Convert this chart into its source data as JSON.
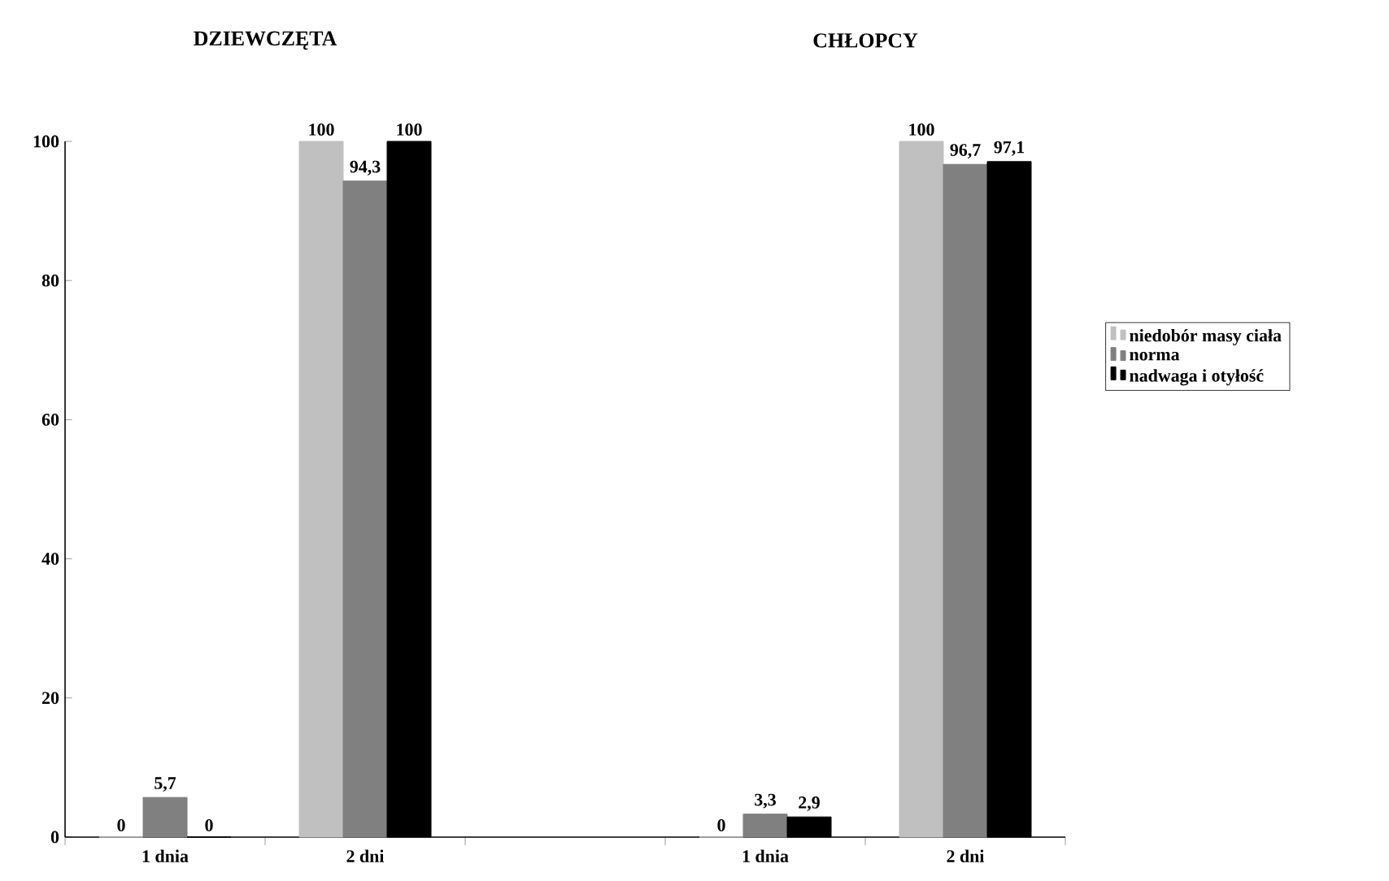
{
  "chart_data": {
    "type": "bar",
    "annotations": [
      "DZIEWCZĘTA",
      "CHŁOPCY"
    ],
    "categories": [
      "1 dnia",
      "2 dni",
      null,
      "1 dnia",
      "2 dni"
    ],
    "series": [
      {
        "name": "niedobór masy ciała",
        "color": "#c0c0c0",
        "values": [
          0,
          100,
          null,
          0,
          100
        ],
        "value_labels": [
          "0",
          "100",
          null,
          "0",
          "100"
        ]
      },
      {
        "name": "norma",
        "color": "#808080",
        "values": [
          5.7,
          94.3,
          null,
          3.3,
          96.7
        ],
        "value_labels": [
          "5,7",
          "94,3",
          null,
          "3,3",
          "96,7"
        ]
      },
      {
        "name": "nadwaga i otyłość",
        "color": "#000000",
        "values": [
          0,
          100,
          null,
          2.9,
          97.1
        ],
        "value_labels": [
          "0",
          "100",
          null,
          "2,9",
          "97,1"
        ]
      }
    ],
    "ylim": [
      0,
      100
    ],
    "yticks": [
      0,
      20,
      40,
      60,
      80,
      100
    ],
    "legend": "right"
  }
}
